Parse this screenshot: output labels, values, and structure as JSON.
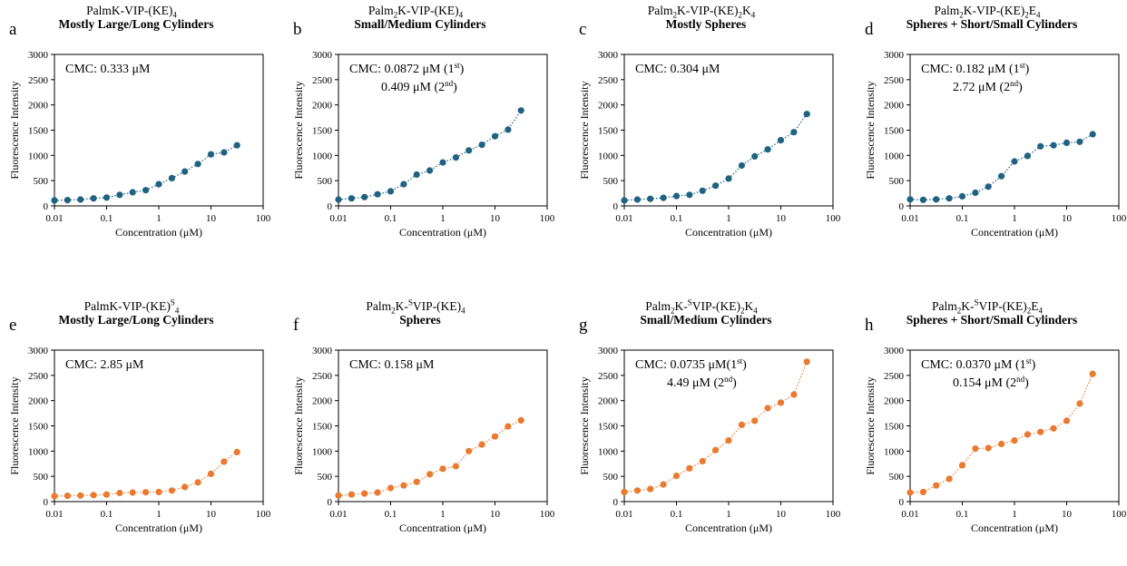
{
  "colors": {
    "blue": "#1f6281",
    "orange": "#e97a30",
    "axis": "#000000",
    "frame": "#000000"
  },
  "chart_data": [
    {
      "panel": "a",
      "type": "scatter",
      "color": "blue",
      "title": {
        "pre": "PalmK-VIP-(KE)",
        "sub1": "4",
        "mid": "",
        "sub2": "",
        "post": ""
      },
      "subtitle": "Mostly Large/Long Cylinders",
      "cmc": [
        "CMC: 0.333 μM"
      ],
      "xlabel": "Concentration (μM)",
      "ylabel": "Fluorescence Intensity",
      "xscale": "log",
      "xlim": [
        0.01,
        100
      ],
      "ylim": [
        0,
        3000
      ],
      "xticks": [
        "0.01",
        "0.1",
        "1",
        "10",
        "100"
      ],
      "yticks": [
        "0",
        "500",
        "1000",
        "1500",
        "2000",
        "2500",
        "3000"
      ],
      "x": [
        0.01,
        0.0178,
        0.0316,
        0.0562,
        0.1,
        0.178,
        0.316,
        0.562,
        1,
        1.78,
        3.16,
        5.62,
        10,
        17.8,
        31.6
      ],
      "y": [
        110,
        115,
        125,
        150,
        165,
        220,
        270,
        310,
        430,
        550,
        680,
        830,
        1020,
        1060,
        1200
      ]
    },
    {
      "panel": "b",
      "type": "scatter",
      "color": "blue",
      "title": {
        "pre": "Palm",
        "sub1": "2",
        "mid": "K-VIP-(KE)",
        "sub2": "4",
        "post": ""
      },
      "subtitle": "Small/Medium Cylinders",
      "cmc": [
        "CMC: 0.0872 μM (1",
        "st",
        ")",
        "0.409 μM (2",
        "nd",
        ")"
      ],
      "xlabel": "Concentration (μM)",
      "ylabel": "Fluorescence Intensity",
      "xscale": "log",
      "xlim": [
        0.01,
        100
      ],
      "ylim": [
        0,
        3000
      ],
      "xticks": [
        "0.01",
        "0.1",
        "1",
        "10",
        "100"
      ],
      "yticks": [
        "0",
        "500",
        "1000",
        "1500",
        "2000",
        "2500",
        "3000"
      ],
      "x": [
        0.01,
        0.0178,
        0.0316,
        0.0562,
        0.1,
        0.178,
        0.316,
        0.562,
        1,
        1.78,
        3.16,
        5.62,
        10,
        17.8,
        31.6
      ],
      "y": [
        125,
        150,
        175,
        230,
        290,
        430,
        620,
        700,
        860,
        960,
        1100,
        1210,
        1380,
        1510,
        1890
      ]
    },
    {
      "panel": "c",
      "type": "scatter",
      "color": "blue",
      "title": {
        "pre": "Palm",
        "sub1": "2",
        "mid": "K-VIP-(KE)",
        "sub2": "2",
        "post": "K",
        "sub3": "4"
      },
      "subtitle": "Mostly Spheres",
      "cmc": [
        "CMC: 0.304 μM"
      ],
      "xlabel": "Concentration (μM)",
      "ylabel": "Fluorescence Intensity",
      "xscale": "log",
      "xlim": [
        0.01,
        100
      ],
      "ylim": [
        0,
        3000
      ],
      "xticks": [
        "0.01",
        "0.1",
        "1",
        "10",
        "100"
      ],
      "yticks": [
        "0",
        "500",
        "1000",
        "1500",
        "2000",
        "2500",
        "3000"
      ],
      "x": [
        0.01,
        0.0178,
        0.0316,
        0.0562,
        0.1,
        0.178,
        0.316,
        0.562,
        1,
        1.78,
        3.16,
        5.62,
        10,
        17.8,
        31.6
      ],
      "y": [
        110,
        125,
        140,
        160,
        195,
        220,
        300,
        400,
        540,
        800,
        980,
        1120,
        1300,
        1460,
        1820
      ]
    },
    {
      "panel": "d",
      "type": "scatter",
      "color": "blue",
      "title": {
        "pre": "Palm",
        "sub1": "2",
        "mid": "K-VIP-(KE)",
        "sub2": "2",
        "post": "E",
        "sub3": "4"
      },
      "subtitle": "Spheres + Short/Small Cylinders",
      "cmc": [
        "CMC: 0.182 μM (1",
        "st",
        ")",
        "2.72 μM (2",
        "nd",
        ")"
      ],
      "xlabel": "Concentration (μM)",
      "ylabel": "Fluorescence Intensity",
      "xscale": "log",
      "xlim": [
        0.01,
        100
      ],
      "ylim": [
        0,
        3000
      ],
      "xticks": [
        "0.01",
        "0.1",
        "1",
        "10",
        "100"
      ],
      "yticks": [
        "0",
        "500",
        "1000",
        "1500",
        "2000",
        "2500",
        "3000"
      ],
      "x": [
        0.01,
        0.0178,
        0.0316,
        0.0562,
        0.1,
        0.178,
        0.316,
        0.562,
        1,
        1.78,
        3.16,
        5.62,
        10,
        17.8,
        31.6
      ],
      "y": [
        130,
        120,
        130,
        150,
        190,
        260,
        380,
        590,
        880,
        990,
        1180,
        1200,
        1250,
        1270,
        1420
      ]
    },
    {
      "panel": "e",
      "type": "scatter",
      "color": "orange",
      "title": {
        "pre": "PalmK-",
        "sup": "S",
        "mid": "VIP-(KE)",
        "sub2": "4",
        "post": ""
      },
      "subtitle": "Mostly Large/Long Cylinders",
      "cmc": [
        "CMC: 2.85 μM"
      ],
      "xlabel": "Concentration (μM)",
      "ylabel": "Fluorescence Intensity",
      "xscale": "log",
      "xlim": [
        0.01,
        100
      ],
      "ylim": [
        0,
        3000
      ],
      "xticks": [
        "0.01",
        "0.1",
        "1",
        "10",
        "100"
      ],
      "yticks": [
        "0",
        "500",
        "1000",
        "1500",
        "2000",
        "2500",
        "3000"
      ],
      "x": [
        0.01,
        0.0178,
        0.0316,
        0.0562,
        0.1,
        0.178,
        0.316,
        0.562,
        1,
        1.78,
        3.16,
        5.62,
        10,
        17.8,
        31.6
      ],
      "y": [
        110,
        115,
        120,
        130,
        140,
        170,
        180,
        185,
        190,
        220,
        290,
        380,
        550,
        790,
        980
      ]
    },
    {
      "panel": "f",
      "type": "scatter",
      "color": "orange",
      "title": {
        "pre": "Palm",
        "sub1": "2",
        "mid": "K-",
        "sup": "S",
        "mid2": "VIP-(KE)",
        "sub2": "4",
        "post": ""
      },
      "subtitle": "Spheres",
      "cmc": [
        "CMC: 0.158 μM"
      ],
      "xlabel": "Concentration (μM)",
      "ylabel": "Fluorescence Intensity",
      "xscale": "log",
      "xlim": [
        0.01,
        100
      ],
      "ylim": [
        0,
        3000
      ],
      "xticks": [
        "0.01",
        "0.1",
        "1",
        "10",
        "100"
      ],
      "yticks": [
        "0",
        "500",
        "1000",
        "1500",
        "2000",
        "2500",
        "3000"
      ],
      "x": [
        0.01,
        0.0178,
        0.0316,
        0.0562,
        0.1,
        0.178,
        0.316,
        0.562,
        1,
        1.78,
        3.16,
        5.62,
        10,
        17.8,
        31.6
      ],
      "y": [
        120,
        140,
        160,
        180,
        270,
        320,
        390,
        540,
        650,
        700,
        1000,
        1130,
        1290,
        1490,
        1610
      ]
    },
    {
      "panel": "g",
      "type": "scatter",
      "color": "orange",
      "title": {
        "pre": "Palm",
        "sub1": "2",
        "mid": "K-",
        "sup": "S",
        "mid2": "VIP-(KE)",
        "sub2": "2",
        "post": "K",
        "sub3": "4"
      },
      "subtitle": "Small/Medium Cylinders",
      "cmc": [
        "CMC: 0.0735 μM(1",
        "st",
        ")",
        "4.49 μM (2",
        "nd",
        ")"
      ],
      "xlabel": "Concentration (μM)",
      "ylabel": "Fluorescence Intensity",
      "xscale": "log",
      "xlim": [
        0.01,
        100
      ],
      "ylim": [
        0,
        3000
      ],
      "xticks": [
        "0.01",
        "0.1",
        "1",
        "10",
        "100"
      ],
      "yticks": [
        "0",
        "500",
        "1000",
        "1500",
        "2000",
        "2500",
        "3000"
      ],
      "x": [
        0.01,
        0.0178,
        0.0316,
        0.0562,
        0.1,
        0.178,
        0.316,
        0.562,
        1,
        1.78,
        3.16,
        5.62,
        10,
        17.8,
        31.6
      ],
      "y": [
        190,
        220,
        250,
        340,
        510,
        660,
        800,
        1020,
        1210,
        1520,
        1600,
        1850,
        1960,
        2120,
        2770
      ]
    },
    {
      "panel": "h",
      "type": "scatter",
      "color": "orange",
      "title": {
        "pre": "Palm",
        "sub1": "2",
        "mid": "K-",
        "sup": "S",
        "mid2": "VIP-(KE)",
        "sub2": "2",
        "post": "E",
        "sub3": "4"
      },
      "subtitle": "Spheres + Short/Small Cylinders",
      "cmc": [
        "CMC: 0.0370 μM (1",
        "st",
        ")",
        "0.154 μM (2",
        "nd",
        ")"
      ],
      "xlabel": "Concentration (μM)",
      "ylabel": "Fluorescence Intensity",
      "xscale": "log",
      "xlim": [
        0.01,
        100
      ],
      "ylim": [
        0,
        3000
      ],
      "xticks": [
        "0.01",
        "0.1",
        "1",
        "10",
        "100"
      ],
      "yticks": [
        "0",
        "500",
        "1000",
        "1500",
        "2000",
        "2500",
        "3000"
      ],
      "x": [
        0.01,
        0.0178,
        0.0316,
        0.0562,
        0.1,
        0.178,
        0.316,
        0.562,
        1,
        1.78,
        3.16,
        5.62,
        10,
        17.8,
        31.6
      ],
      "y": [
        180,
        190,
        320,
        450,
        720,
        1050,
        1060,
        1140,
        1210,
        1330,
        1380,
        1450,
        1600,
        1940,
        2530
      ]
    }
  ]
}
